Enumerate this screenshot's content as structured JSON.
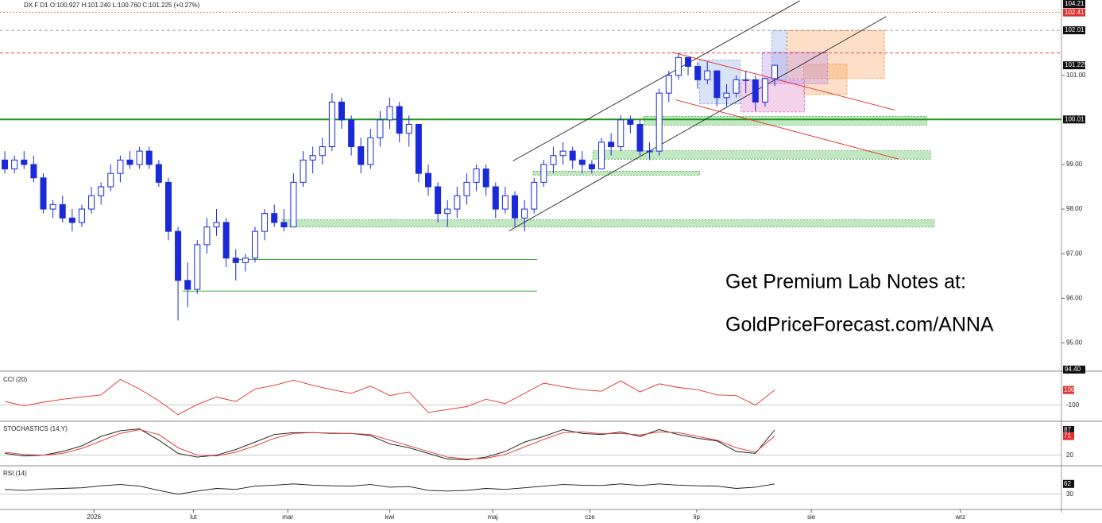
{
  "chart_data": {
    "type": "candlestick",
    "header": "DX.F  D1  O:100.927  H:101.240  L:100.760  C:101.225  (+0.27%)",
    "up_color": "#ffffff",
    "color": "#1a2ad8",
    "xlim": [
      -0.5,
      109.8
    ],
    "xticks": [
      {
        "value": 9.25,
        "label": "2026"
      },
      {
        "value": 19.6,
        "label": "lut"
      },
      {
        "value": 29.4,
        "label": "mar"
      },
      {
        "value": 40.0,
        "label": "kwi"
      },
      {
        "value": 50.7,
        "label": "maj"
      },
      {
        "value": 60.8,
        "label": "cze"
      },
      {
        "value": 71.9,
        "label": "lip"
      },
      {
        "value": 83.8,
        "label": "sie"
      },
      {
        "value": 99.3,
        "label": "wrz"
      }
    ],
    "ylim": [
      94.4,
      102.6
    ],
    "yticks": [
      {
        "value": 95,
        "label": "95.00"
      },
      {
        "value": 96,
        "label": "96.00"
      },
      {
        "value": 97,
        "label": "97.00"
      },
      {
        "value": 98,
        "label": "98.00"
      },
      {
        "value": 99,
        "label": "99.00"
      },
      {
        "value": 101,
        "label": "101.00"
      }
    ],
    "axis_badges": [
      "104.21",
      "94.40"
    ],
    "levels": [
      {
        "value": 102.41,
        "color": "#e0663a",
        "dash": "2 2"
      },
      {
        "value": 102.01,
        "color": "#888888",
        "dash": "4 3"
      },
      {
        "value": 101.5,
        "color": "#e03030",
        "dash": "4 3"
      },
      {
        "value": 100.01,
        "color": "#1a9a1a",
        "dash": "none"
      }
    ],
    "candles": [
      [
        99.1,
        99.3,
        98.8,
        98.9
      ],
      [
        98.9,
        99.2,
        98.8,
        99.1
      ],
      [
        99.1,
        99.3,
        98.9,
        99.0
      ],
      [
        99.0,
        99.2,
        98.6,
        98.7
      ],
      [
        98.7,
        98.8,
        97.9,
        98.0
      ],
      [
        98.0,
        98.2,
        97.8,
        98.1
      ],
      [
        98.1,
        98.3,
        97.7,
        97.8
      ],
      [
        97.8,
        98.0,
        97.5,
        97.7
      ],
      [
        97.7,
        98.1,
        97.6,
        98.0
      ],
      [
        98.0,
        98.5,
        97.9,
        98.3
      ],
      [
        98.3,
        98.6,
        98.1,
        98.5
      ],
      [
        98.5,
        99.0,
        98.4,
        98.8
      ],
      [
        98.8,
        99.2,
        98.6,
        99.1
      ],
      [
        99.1,
        99.3,
        98.9,
        99.0
      ],
      [
        99.0,
        99.4,
        98.9,
        99.3
      ],
      [
        99.3,
        99.4,
        98.9,
        99.0
      ],
      [
        99.0,
        99.1,
        98.5,
        98.6
      ],
      [
        98.6,
        98.7,
        97.3,
        97.5
      ],
      [
        97.5,
        97.6,
        95.5,
        96.4
      ],
      [
        96.4,
        96.8,
        95.8,
        96.2
      ],
      [
        96.2,
        97.3,
        96.1,
        97.2
      ],
      [
        97.2,
        97.8,
        97.0,
        97.6
      ],
      [
        97.6,
        98.0,
        97.4,
        97.7
      ],
      [
        97.7,
        97.8,
        96.7,
        96.9
      ],
      [
        96.9,
        97.1,
        96.4,
        96.8
      ],
      [
        96.8,
        97.0,
        96.6,
        96.9
      ],
      [
        96.9,
        97.6,
        96.8,
        97.5
      ],
      [
        97.5,
        98.0,
        97.3,
        97.9
      ],
      [
        97.9,
        98.1,
        97.6,
        97.7
      ],
      [
        97.7,
        98.0,
        97.5,
        97.6
      ],
      [
        97.6,
        98.8,
        97.6,
        98.6
      ],
      [
        98.6,
        99.3,
        98.5,
        99.1
      ],
      [
        99.1,
        99.4,
        98.8,
        99.2
      ],
      [
        99.2,
        99.6,
        99.0,
        99.4
      ],
      [
        99.4,
        100.6,
        99.3,
        100.4
      ],
      [
        100.4,
        100.5,
        99.8,
        100.0
      ],
      [
        100.0,
        100.1,
        99.2,
        99.4
      ],
      [
        99.4,
        99.6,
        98.8,
        99.0
      ],
      [
        99.0,
        99.8,
        98.9,
        99.6
      ],
      [
        99.6,
        100.2,
        99.4,
        100.0
      ],
      [
        100.0,
        100.5,
        99.8,
        100.3
      ],
      [
        100.3,
        100.4,
        99.5,
        99.7
      ],
      [
        99.7,
        100.1,
        99.4,
        99.9
      ],
      [
        99.9,
        99.9,
        98.6,
        98.8
      ],
      [
        98.8,
        99.0,
        98.3,
        98.5
      ],
      [
        98.5,
        98.6,
        97.7,
        97.9
      ],
      [
        97.9,
        98.2,
        97.6,
        98.0
      ],
      [
        98.0,
        98.5,
        97.8,
        98.3
      ],
      [
        98.3,
        98.8,
        98.1,
        98.6
      ],
      [
        98.6,
        99.0,
        98.4,
        98.9
      ],
      [
        98.9,
        99.0,
        98.3,
        98.5
      ],
      [
        98.5,
        98.6,
        97.8,
        98.0
      ],
      [
        98.0,
        98.5,
        97.9,
        98.3
      ],
      [
        98.3,
        98.4,
        97.6,
        97.8
      ],
      [
        97.8,
        98.2,
        97.5,
        98.0
      ],
      [
        98.0,
        98.7,
        97.9,
        98.6
      ],
      [
        98.6,
        99.1,
        98.5,
        99.0
      ],
      [
        99.0,
        99.4,
        98.8,
        99.2
      ],
      [
        99.2,
        99.5,
        99.0,
        99.3
      ],
      [
        99.3,
        99.4,
        98.9,
        99.1
      ],
      [
        99.1,
        99.3,
        98.8,
        99.0
      ],
      [
        99.0,
        99.1,
        98.8,
        98.9
      ],
      [
        98.9,
        99.6,
        98.9,
        99.5
      ],
      [
        99.5,
        99.7,
        99.2,
        99.4
      ],
      [
        99.4,
        100.1,
        99.3,
        100.0
      ],
      [
        100.0,
        100.1,
        99.7,
        99.9
      ],
      [
        99.9,
        100.0,
        99.2,
        99.3
      ],
      [
        99.3,
        99.5,
        99.1,
        99.3
      ],
      [
        99.3,
        100.7,
        99.2,
        100.6
      ],
      [
        100.6,
        101.1,
        100.4,
        101.0
      ],
      [
        101.0,
        101.5,
        100.9,
        101.4
      ],
      [
        101.4,
        101.4,
        101.0,
        101.2
      ],
      [
        101.2,
        101.3,
        100.7,
        100.9
      ],
      [
        100.9,
        101.3,
        100.8,
        101.1
      ],
      [
        101.1,
        101.1,
        100.3,
        100.5
      ],
      [
        100.5,
        100.8,
        100.3,
        100.6
      ],
      [
        100.6,
        101.0,
        100.5,
        100.9
      ],
      [
        100.9,
        101.1,
        100.6,
        100.9
      ],
      [
        100.9,
        101.0,
        100.2,
        100.4
      ],
      [
        100.4,
        100.95,
        100.3,
        100.927
      ],
      [
        100.927,
        101.24,
        100.76,
        101.225
      ]
    ],
    "zones": [
      {
        "x": [
          66.4,
          95.8
        ],
        "y": [
          99.88,
          100.08
        ]
      },
      {
        "x": [
          61.1,
          96.2
        ],
        "y": [
          99.12,
          99.31
        ]
      },
      {
        "x": [
          54.9,
          72.2
        ],
        "y": [
          98.76,
          98.85
        ]
      },
      {
        "x": [
          28.8,
          96.6
        ],
        "y": [
          97.6,
          97.76
        ]
      }
    ],
    "support_lines": [
      {
        "x": [
          24.3,
          55.3
        ],
        "y": 96.87
      },
      {
        "x": [
          18.5,
          55.3
        ],
        "y": 96.16
      }
    ],
    "trend_lines": [
      {
        "x": [
          52.8,
          82.6
        ],
        "y": [
          99.08,
          102.67
        ],
        "color": "#222222"
      },
      {
        "x": [
          52.4,
          91.6
        ],
        "y": [
          97.51,
          102.32
        ],
        "color": "#222222"
      },
      {
        "x": [
          69.3,
          92.5
        ],
        "y": [
          101.52,
          100.22
        ],
        "color": "#e03030"
      },
      {
        "x": [
          69.7,
          92.9
        ],
        "y": [
          100.45,
          99.12
        ],
        "color": "#e03030"
      }
    ],
    "boxes": [
      {
        "x": [
          81.3,
          91.4
        ],
        "y": [
          100.93,
          102.0
        ],
        "color": "#f5a25d"
      },
      {
        "x": [
          83.0,
          87.5
        ],
        "y": [
          100.57,
          101.25
        ],
        "color": "#f5a25d"
      },
      {
        "x": [
          76.5,
          83.1
        ],
        "y": [
          100.18,
          100.9
        ],
        "color": "#e27fc8"
      },
      {
        "x": [
          78.7,
          85.5
        ],
        "y": [
          100.81,
          101.52
        ],
        "color": "#b98ee8"
      },
      {
        "x": [
          72.2,
          76.4
        ],
        "y": [
          100.36,
          101.34
        ],
        "color": "#8fb0e6"
      },
      {
        "x": [
          79.7,
          81.2
        ],
        "y": [
          100.9,
          102.0
        ],
        "color": "#8fb0e6"
      }
    ],
    "annotations": [
      "Get Premium Lab Notes at:",
      "GoldPriceForecast.com/ANNA"
    ],
    "indicator_x": [
      0,
      2,
      4,
      6,
      8,
      10,
      12,
      14,
      16,
      18,
      20,
      22,
      24,
      26,
      28,
      30,
      32,
      34,
      36,
      38,
      40,
      42,
      44,
      46,
      48,
      50,
      52,
      54,
      56,
      58,
      60,
      62,
      64,
      66,
      68,
      70,
      72,
      74,
      76,
      78,
      80
    ],
    "panels": [
      {
        "title": "CCI (20)",
        "ylim": [
          -320,
          330
        ],
        "yticks": [
          -100
        ],
        "series": [
          {
            "color": "#e03030",
            "values": [
              -50,
              -110,
              -60,
              -20,
              10,
              40,
              250,
              120,
              -40,
              -230,
              -90,
              10,
              -50,
              120,
              170,
              240,
              170,
              110,
              60,
              160,
              30,
              80,
              -200,
              -160,
              -120,
              -20,
              -80,
              60,
              200,
              150,
              110,
              90,
              230,
              80,
              190,
              140,
              110,
              40,
              30,
              -100,
              106
            ],
            "badge": "#e03030"
          }
        ]
      },
      {
        "title": "STOCHASTICS (14,Y)",
        "ylim": [
          -8,
          106
        ],
        "yticks": [
          20
        ],
        "series": [
          {
            "color": "#111111",
            "values": [
              25,
              18,
              20,
              30,
              45,
              70,
              85,
              90,
              60,
              25,
              15,
              20,
              35,
              55,
              75,
              80,
              80,
              78,
              78,
              72,
              50,
              40,
              25,
              10,
              8,
              15,
              30,
              55,
              70,
              88,
              78,
              75,
              82,
              70,
              88,
              75,
              65,
              58,
              30,
              25,
              87
            ],
            "badge": "#111111"
          },
          {
            "color": "#e03030",
            "values": [
              28,
              22,
              20,
              25,
              38,
              58,
              78,
              88,
              75,
              40,
              20,
              18,
              28,
              45,
              65,
              78,
              80,
              79,
              78,
              75,
              60,
              45,
              30,
              15,
              10,
              12,
              22,
              42,
              62,
              80,
              82,
              77,
              78,
              74,
              82,
              80,
              70,
              60,
              40,
              28,
              71
            ],
            "badge": "#e03030"
          }
        ]
      },
      {
        "title": "RSI (14)",
        "ylim": [
          -17,
          113
        ],
        "yticks": [
          30
        ],
        "series": [
          {
            "color": "#111111",
            "values": [
              45,
              42,
              46,
              48,
              50,
              56,
              60,
              55,
              42,
              30,
              40,
              48,
              45,
              55,
              58,
              62,
              58,
              56,
              55,
              60,
              52,
              54,
              42,
              40,
              42,
              48,
              45,
              50,
              55,
              60,
              58,
              57,
              62,
              57,
              62,
              58,
              56,
              55,
              48,
              52,
              62
            ],
            "badge": "#111111"
          }
        ]
      }
    ]
  }
}
